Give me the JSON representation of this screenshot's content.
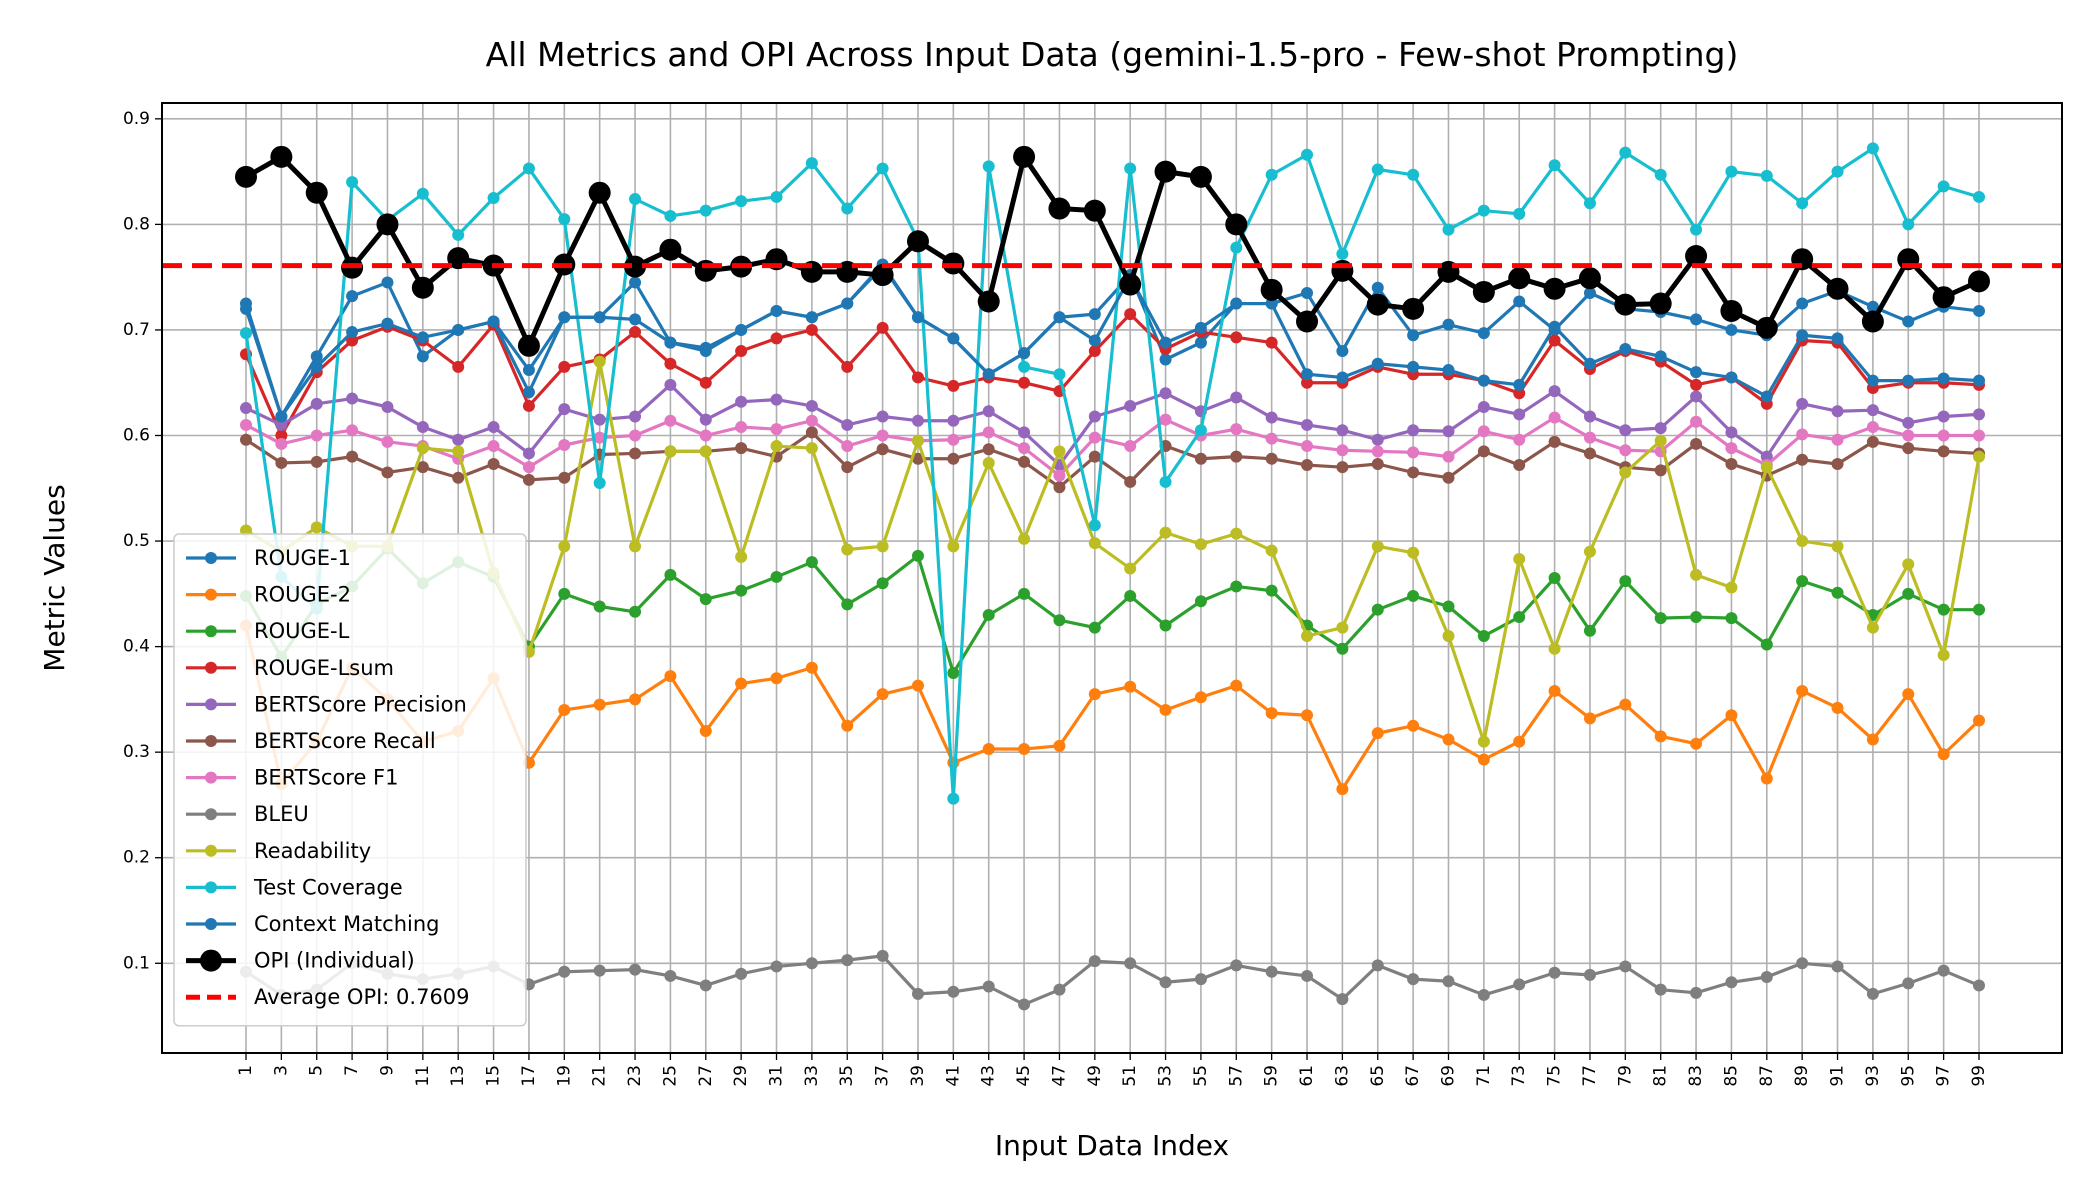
{
  "chart_data": {
    "type": "line",
    "title": "All Metrics and OPI Across Input Data (gemini-1.5-pro - Few-shot Prompting)",
    "xlabel": "Input Data Index",
    "ylabel": "Metric Values",
    "ylim": [
      0.015,
      0.915
    ],
    "yticks": [
      "0.1",
      "0.2",
      "0.3",
      "0.4",
      "0.5",
      "0.6",
      "0.7",
      "0.8",
      "0.9"
    ],
    "x": [
      1,
      3,
      5,
      7,
      9,
      11,
      13,
      15,
      17,
      19,
      21,
      23,
      25,
      27,
      29,
      31,
      33,
      35,
      37,
      39,
      41,
      43,
      45,
      47,
      49,
      51,
      53,
      55,
      57,
      59,
      61,
      63,
      65,
      67,
      69,
      71,
      73,
      75,
      77,
      79,
      81,
      83,
      85,
      87,
      89,
      91,
      93,
      95,
      97,
      99
    ],
    "xticks": [
      "1",
      "3",
      "5",
      "7",
      "9",
      "11",
      "13",
      "15",
      "17",
      "19",
      "21",
      "23",
      "25",
      "27",
      "29",
      "31",
      "33",
      "35",
      "37",
      "39",
      "41",
      "43",
      "45",
      "47",
      "49",
      "51",
      "53",
      "55",
      "57",
      "59",
      "61",
      "63",
      "65",
      "67",
      "69",
      "71",
      "73",
      "75",
      "77",
      "79",
      "81",
      "83",
      "85",
      "87",
      "89",
      "91",
      "93",
      "95",
      "97",
      "99"
    ],
    "grid": true,
    "legend_position": "lower-left",
    "series": [
      {
        "name": "ROUGE-1",
        "color": "#1f77b4",
        "values": [
          0.725,
          0.618,
          0.675,
          0.732,
          0.745,
          0.675,
          0.7,
          0.708,
          0.662,
          0.712,
          0.712,
          0.745,
          0.688,
          0.683,
          0.7,
          0.718,
          0.712,
          0.725,
          0.762,
          0.712,
          0.692,
          0.658,
          0.678,
          0.712,
          0.715,
          0.752,
          0.672,
          0.688,
          0.725,
          0.725,
          0.735,
          0.68,
          0.74,
          0.695,
          0.705,
          0.697,
          0.727,
          0.7,
          0.735,
          0.72,
          0.717,
          0.71,
          0.7,
          0.695,
          0.725,
          0.737,
          0.722,
          0.708,
          0.722,
          0.718
        ]
      },
      {
        "name": "ROUGE-2",
        "color": "#ff7f0e",
        "values": [
          0.42,
          0.27,
          0.31,
          0.38,
          0.35,
          0.31,
          0.32,
          0.37,
          0.29,
          0.34,
          0.345,
          0.35,
          0.372,
          0.32,
          0.365,
          0.37,
          0.38,
          0.325,
          0.355,
          0.363,
          0.29,
          0.303,
          0.303,
          0.306,
          0.355,
          0.362,
          0.34,
          0.352,
          0.363,
          0.337,
          0.335,
          0.265,
          0.318,
          0.325,
          0.312,
          0.293,
          0.31,
          0.358,
          0.332,
          0.345,
          0.315,
          0.308,
          0.335,
          0.275,
          0.358,
          0.342,
          0.312,
          0.355,
          0.298,
          0.33
        ]
      },
      {
        "name": "ROUGE-L",
        "color": "#2ca02c",
        "values": [
          0.448,
          0.39,
          0.44,
          0.457,
          0.493,
          0.46,
          0.48,
          0.466,
          0.4,
          0.45,
          0.438,
          0.433,
          0.468,
          0.445,
          0.453,
          0.466,
          0.48,
          0.44,
          0.46,
          0.486,
          0.375,
          0.43,
          0.45,
          0.425,
          0.418,
          0.448,
          0.42,
          0.443,
          0.457,
          0.453,
          0.42,
          0.398,
          0.435,
          0.448,
          0.438,
          0.41,
          0.428,
          0.465,
          0.415,
          0.462,
          0.427,
          0.428,
          0.427,
          0.402,
          0.462,
          0.451,
          0.43,
          0.45,
          0.435,
          0.435
        ]
      },
      {
        "name": "ROUGE-Lsum",
        "color": "#d62728",
        "values": [
          0.677,
          0.6,
          0.66,
          0.69,
          0.703,
          0.69,
          0.665,
          0.705,
          0.628,
          0.665,
          0.672,
          0.698,
          0.668,
          0.65,
          0.68,
          0.692,
          0.7,
          0.665,
          0.702,
          0.655,
          0.647,
          0.655,
          0.65,
          0.642,
          0.68,
          0.715,
          0.682,
          0.698,
          0.693,
          0.688,
          0.65,
          0.65,
          0.665,
          0.658,
          0.658,
          0.652,
          0.64,
          0.69,
          0.663,
          0.68,
          0.67,
          0.648,
          0.655,
          0.63,
          0.69,
          0.688,
          0.645,
          0.65,
          0.65,
          0.648
        ]
      },
      {
        "name": "BERTScore Precision",
        "color": "#9467bd",
        "values": [
          0.626,
          0.61,
          0.63,
          0.635,
          0.627,
          0.608,
          0.596,
          0.608,
          0.583,
          0.625,
          0.615,
          0.618,
          0.648,
          0.615,
          0.632,
          0.634,
          0.628,
          0.61,
          0.618,
          0.614,
          0.614,
          0.623,
          0.603,
          0.572,
          0.618,
          0.628,
          0.64,
          0.623,
          0.636,
          0.617,
          0.61,
          0.605,
          0.596,
          0.605,
          0.604,
          0.627,
          0.62,
          0.642,
          0.618,
          0.605,
          0.607,
          0.637,
          0.603,
          0.58,
          0.63,
          0.623,
          0.624,
          0.612,
          0.618,
          0.62
        ]
      },
      {
        "name": "BERTScore Recall",
        "color": "#8c564b",
        "values": [
          0.596,
          0.574,
          0.575,
          0.58,
          0.565,
          0.57,
          0.56,
          0.573,
          0.558,
          0.56,
          0.582,
          0.583,
          0.585,
          0.585,
          0.588,
          0.58,
          0.603,
          0.57,
          0.587,
          0.578,
          0.578,
          0.587,
          0.575,
          0.551,
          0.58,
          0.556,
          0.59,
          0.578,
          0.58,
          0.578,
          0.572,
          0.57,
          0.573,
          0.565,
          0.56,
          0.585,
          0.572,
          0.594,
          0.583,
          0.57,
          0.567,
          0.592,
          0.573,
          0.562,
          0.577,
          0.573,
          0.594,
          0.588,
          0.585,
          0.583
        ]
      },
      {
        "name": "BERTScore F1",
        "color": "#e377c2",
        "values": [
          0.61,
          0.592,
          0.6,
          0.605,
          0.594,
          0.59,
          0.578,
          0.59,
          0.57,
          0.591,
          0.598,
          0.6,
          0.614,
          0.6,
          0.608,
          0.606,
          0.614,
          0.59,
          0.6,
          0.595,
          0.596,
          0.603,
          0.588,
          0.562,
          0.598,
          0.59,
          0.615,
          0.6,
          0.606,
          0.597,
          0.59,
          0.586,
          0.585,
          0.584,
          0.58,
          0.604,
          0.596,
          0.617,
          0.598,
          0.586,
          0.585,
          0.613,
          0.588,
          0.572,
          0.601,
          0.596,
          0.608,
          0.6,
          0.6,
          0.6
        ]
      },
      {
        "name": "BLEU",
        "color": "#7f7f7f",
        "values": [
          0.092,
          0.07,
          0.075,
          0.1,
          0.09,
          0.085,
          0.09,
          0.097,
          0.08,
          0.092,
          0.093,
          0.094,
          0.088,
          0.079,
          0.09,
          0.097,
          0.1,
          0.103,
          0.107,
          0.071,
          0.073,
          0.078,
          0.061,
          0.075,
          0.102,
          0.1,
          0.082,
          0.085,
          0.098,
          0.092,
          0.088,
          0.066,
          0.098,
          0.085,
          0.083,
          0.07,
          0.08,
          0.091,
          0.089,
          0.097,
          0.075,
          0.072,
          0.082,
          0.087,
          0.1,
          0.097,
          0.071,
          0.081,
          0.093,
          0.079
        ]
      },
      {
        "name": "Readability",
        "color": "#bcbd22",
        "values": [
          0.51,
          0.49,
          0.513,
          0.495,
          0.495,
          0.588,
          0.585,
          0.47,
          0.395,
          0.495,
          0.67,
          0.495,
          0.585,
          0.585,
          0.485,
          0.59,
          0.588,
          0.492,
          0.495,
          0.595,
          0.495,
          0.574,
          0.502,
          0.585,
          0.498,
          0.474,
          0.508,
          0.497,
          0.507,
          0.491,
          0.41,
          0.418,
          0.495,
          0.489,
          0.41,
          0.31,
          0.483,
          0.398,
          0.49,
          0.565,
          0.595,
          0.468,
          0.456,
          0.57,
          0.5,
          0.495,
          0.418,
          0.478,
          0.392,
          0.58
        ]
      },
      {
        "name": "Test Coverage",
        "color": "#17becf",
        "values": [
          0.697,
          0.466,
          0.436,
          0.84,
          0.804,
          0.829,
          0.79,
          0.825,
          0.853,
          0.805,
          0.555,
          0.824,
          0.808,
          0.813,
          0.822,
          0.826,
          0.858,
          0.815,
          0.853,
          0.785,
          0.256,
          0.855,
          0.665,
          0.658,
          0.515,
          0.853,
          0.556,
          0.605,
          0.778,
          0.847,
          0.866,
          0.772,
          0.852,
          0.847,
          0.795,
          0.813,
          0.81,
          0.856,
          0.82,
          0.868,
          0.847,
          0.795,
          0.85,
          0.846,
          0.82,
          0.85,
          0.872,
          0.8,
          0.836,
          0.826
        ]
      },
      {
        "name": "Context Matching",
        "color": "#1f77b4",
        "values": [
          0.72,
          0.618,
          0.665,
          0.698,
          0.706,
          0.693,
          0.7,
          0.708,
          0.641,
          0.712,
          0.712,
          0.71,
          0.688,
          0.68,
          0.7,
          0.718,
          0.712,
          0.725,
          0.76,
          0.712,
          0.692,
          0.658,
          0.678,
          0.712,
          0.69,
          0.75,
          0.688,
          0.702,
          0.725,
          0.725,
          0.658,
          0.655,
          0.668,
          0.665,
          0.662,
          0.652,
          0.648,
          0.703,
          0.668,
          0.682,
          0.675,
          0.66,
          0.655,
          0.637,
          0.695,
          0.692,
          0.652,
          0.652,
          0.654,
          0.652
        ]
      },
      {
        "name": "OPI (Individual)",
        "color": "#000000",
        "values": [
          0.845,
          0.864,
          0.83,
          0.759,
          0.8,
          0.74,
          0.768,
          0.761,
          0.685,
          0.762,
          0.83,
          0.76,
          0.776,
          0.756,
          0.76,
          0.767,
          0.755,
          0.755,
          0.752,
          0.784,
          0.763,
          0.727,
          0.864,
          0.815,
          0.813,
          0.743,
          0.85,
          0.845,
          0.8,
          0.738,
          0.708,
          0.756,
          0.724,
          0.72,
          0.755,
          0.736,
          0.749,
          0.739,
          0.749,
          0.724,
          0.725,
          0.77,
          0.718,
          0.702,
          0.767,
          0.739,
          0.708,
          0.767,
          0.731,
          0.746
        ]
      }
    ],
    "average_line": {
      "label": "Average OPI: 0.7609",
      "value": 0.7609,
      "color": "#ff0000"
    }
  }
}
